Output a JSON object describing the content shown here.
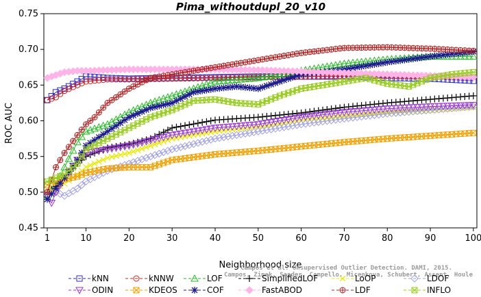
{
  "chart_data": {
    "type": "line",
    "title": "Pima_withoutdupl_20_v10",
    "xlabel": "Neighborhood size",
    "ylabel": "ROC AUC",
    "xlim": [
      1,
      100
    ],
    "ylim": [
      0.45,
      0.75
    ],
    "x_ticks": [
      1,
      10,
      20,
      30,
      40,
      50,
      60,
      70,
      80,
      90,
      100
    ],
    "y_ticks": [
      "0.45",
      "0.50",
      "0.55",
      "0.60",
      "0.65",
      "0.70",
      "0.75"
    ],
    "grid": false,
    "legend_position": "bottom",
    "credit": [
      "Campos et al. Unsupervised Outlier Detection. DAMI, 2015.",
      "Campos, Zimek, Sander, Campello, Micenkova, Schubert, Assent, Houle"
    ],
    "series": [
      {
        "name": "kNN",
        "color": "#2b2bcc",
        "marker": "square",
        "x": [
          1,
          3,
          5,
          8,
          10,
          15,
          20,
          30,
          40,
          50,
          60,
          70,
          80,
          90,
          100
        ],
        "values": [
          0.629,
          0.64,
          0.645,
          0.655,
          0.662,
          0.66,
          0.659,
          0.66,
          0.661,
          0.662,
          0.662,
          0.662,
          0.66,
          0.659,
          0.656
        ]
      },
      {
        "name": "kNNW",
        "color": "#cc2222",
        "marker": "circle",
        "x": [
          1,
          3,
          5,
          8,
          10,
          15,
          20,
          30,
          40,
          50,
          60,
          70,
          80,
          90,
          100
        ],
        "values": [
          0.629,
          0.633,
          0.642,
          0.65,
          0.655,
          0.658,
          0.658,
          0.659,
          0.66,
          0.661,
          0.662,
          0.663,
          0.663,
          0.662,
          0.661
        ]
      },
      {
        "name": "LOF",
        "color": "#22bb22",
        "marker": "triangle-up",
        "x": [
          1,
          3,
          5,
          8,
          10,
          15,
          20,
          25,
          30,
          40,
          50,
          60,
          70,
          80,
          90,
          100
        ],
        "values": [
          0.495,
          0.51,
          0.535,
          0.57,
          0.585,
          0.595,
          0.612,
          0.625,
          0.635,
          0.655,
          0.66,
          0.67,
          0.68,
          0.686,
          0.69,
          0.69
        ]
      },
      {
        "name": "SimplifiedLOF",
        "color": "#000000",
        "marker": "plus",
        "x": [
          1,
          3,
          5,
          8,
          10,
          15,
          20,
          25,
          30,
          40,
          50,
          60,
          70,
          80,
          90,
          100
        ],
        "values": [
          0.5,
          0.508,
          0.52,
          0.54,
          0.55,
          0.562,
          0.567,
          0.575,
          0.59,
          0.601,
          0.605,
          0.611,
          0.619,
          0.625,
          0.63,
          0.635
        ]
      },
      {
        "name": "LoOP",
        "color": "#e8e800",
        "marker": "x",
        "x": [
          1,
          3,
          5,
          8,
          10,
          15,
          20,
          25,
          30,
          40,
          50,
          60,
          70,
          80,
          90,
          100
        ],
        "values": [
          0.5,
          0.505,
          0.512,
          0.525,
          0.535,
          0.548,
          0.555,
          0.565,
          0.575,
          0.585,
          0.592,
          0.6,
          0.606,
          0.611,
          0.615,
          0.619
        ]
      },
      {
        "name": "LDOF",
        "color": "#a0a0e6",
        "marker": "diamond",
        "x": [
          1,
          3,
          5,
          8,
          10,
          15,
          20,
          25,
          30,
          40,
          50,
          60,
          70,
          80,
          90,
          100
        ],
        "values": [
          0.5,
          0.5,
          0.495,
          0.505,
          0.515,
          0.53,
          0.54,
          0.55,
          0.56,
          0.575,
          0.585,
          0.595,
          0.603,
          0.61,
          0.615,
          0.62
        ]
      },
      {
        "name": "ODIN",
        "color": "#9b30d9",
        "marker": "triangle-down",
        "x": [
          1,
          2,
          3,
          5,
          8,
          10,
          15,
          20,
          30,
          40,
          50,
          60,
          70,
          80,
          90,
          100
        ],
        "values": [
          0.495,
          0.485,
          0.5,
          0.52,
          0.545,
          0.555,
          0.56,
          0.565,
          0.58,
          0.59,
          0.595,
          0.605,
          0.612,
          0.617,
          0.62,
          0.622
        ]
      },
      {
        "name": "KDEOS",
        "color": "#f0a000",
        "marker": "square-x",
        "x": [
          1,
          3,
          5,
          8,
          10,
          15,
          20,
          25,
          30,
          40,
          50,
          60,
          70,
          80,
          90,
          100
        ],
        "values": [
          0.51,
          0.515,
          0.518,
          0.522,
          0.527,
          0.533,
          0.535,
          0.535,
          0.545,
          0.553,
          0.558,
          0.564,
          0.57,
          0.575,
          0.579,
          0.583
        ]
      },
      {
        "name": "COF",
        "color": "#1a1a8c",
        "marker": "asterisk",
        "x": [
          1,
          3,
          5,
          8,
          10,
          15,
          20,
          25,
          30,
          35,
          40,
          45,
          50,
          55,
          60,
          70,
          80,
          90,
          100
        ],
        "values": [
          0.49,
          0.505,
          0.52,
          0.545,
          0.565,
          0.585,
          0.605,
          0.618,
          0.625,
          0.64,
          0.645,
          0.648,
          0.645,
          0.655,
          0.665,
          0.672,
          0.682,
          0.69,
          0.697
        ]
      },
      {
        "name": "FastABOD",
        "color": "#ffb3e6",
        "marker": "diamond-filled",
        "x": [
          1,
          3,
          5,
          8,
          10,
          15,
          20,
          30,
          40,
          50,
          60,
          70,
          80,
          90,
          100
        ],
        "values": [
          0.66,
          0.664,
          0.668,
          0.67,
          0.67,
          0.671,
          0.672,
          0.672,
          0.672,
          0.671,
          0.669,
          0.667,
          0.665,
          0.663,
          0.661
        ]
      },
      {
        "name": "LDF",
        "color": "#b22222",
        "marker": "circle-plus",
        "x": [
          1,
          3,
          5,
          8,
          10,
          12,
          15,
          20,
          25,
          30,
          40,
          50,
          60,
          70,
          80,
          90,
          100
        ],
        "values": [
          0.5,
          0.535,
          0.555,
          0.58,
          0.595,
          0.605,
          0.625,
          0.645,
          0.66,
          0.665,
          0.675,
          0.685,
          0.695,
          0.702,
          0.703,
          0.701,
          0.698
        ]
      },
      {
        "name": "INFLO",
        "color": "#99cc22",
        "marker": "square-cross",
        "x": [
          1,
          3,
          5,
          8,
          10,
          15,
          20,
          25,
          30,
          35,
          40,
          45,
          50,
          55,
          60,
          65,
          70,
          75,
          80,
          85,
          90,
          95,
          100
        ],
        "values": [
          0.515,
          0.52,
          0.525,
          0.54,
          0.56,
          0.575,
          0.59,
          0.605,
          0.615,
          0.628,
          0.63,
          0.625,
          0.623,
          0.635,
          0.645,
          0.65,
          0.655,
          0.66,
          0.652,
          0.648,
          0.66,
          0.665,
          0.668
        ]
      }
    ],
    "legend_rows": [
      [
        "kNN",
        "kNNW",
        "LOF",
        "SimplifiedLOF",
        "LoOP",
        "LDOF"
      ],
      [
        "ODIN",
        "KDEOS",
        "COF",
        "FastABOD",
        "LDF",
        "INFLO"
      ]
    ]
  }
}
